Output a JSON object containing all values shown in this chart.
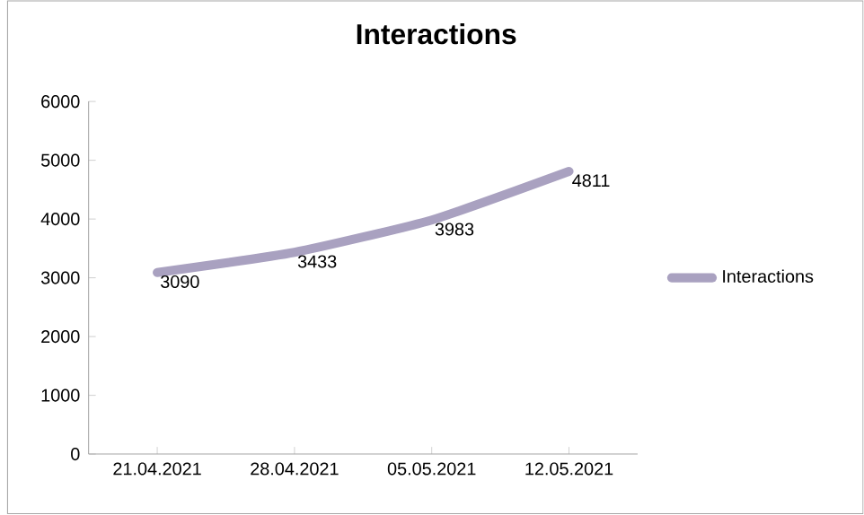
{
  "chart_data": {
    "type": "line",
    "title": "Interactions",
    "categories": [
      "21.04.2021",
      "28.04.2021",
      "05.05.2021",
      "12.05.2021"
    ],
    "series": [
      {
        "name": "Interactions",
        "color": "#a9a1c0",
        "values": [
          3090,
          3433,
          3983,
          4811
        ]
      }
    ],
    "ylim": [
      0,
      6000
    ],
    "yticks": [
      0,
      1000,
      2000,
      3000,
      4000,
      5000,
      6000
    ],
    "grid": false,
    "legend": "right",
    "data_labels": true,
    "marker": "none",
    "line_style": "solid"
  }
}
